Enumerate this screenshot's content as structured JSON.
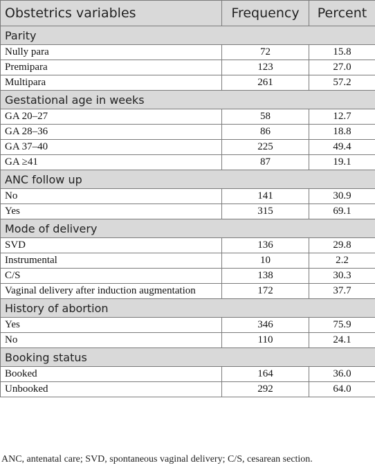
{
  "header": {
    "col1": "Obstetrics variables",
    "col2": "Frequency",
    "col3": "Percent"
  },
  "sections": [
    {
      "title": "Parity",
      "rows": [
        {
          "label": "Nully para",
          "frequency": "72",
          "percent": "15.8"
        },
        {
          "label": "Premipara",
          "frequency": "123",
          "percent": "27.0"
        },
        {
          "label": "Multipara",
          "frequency": "261",
          "percent": "57.2"
        }
      ]
    },
    {
      "title": "Gestational age in weeks",
      "rows": [
        {
          "label": "GA 20–27",
          "frequency": "58",
          "percent": "12.7"
        },
        {
          "label": "GA 28–36",
          "frequency": "86",
          "percent": "18.8"
        },
        {
          "label": "GA 37–40",
          "frequency": "225",
          "percent": "49.4"
        },
        {
          "label": "GA ≥41",
          "frequency": "87",
          "percent": "19.1"
        }
      ]
    },
    {
      "title": "ANC follow up",
      "rows": [
        {
          "label": "No",
          "frequency": "141",
          "percent": "30.9"
        },
        {
          "label": "Yes",
          "frequency": "315",
          "percent": "69.1"
        }
      ]
    },
    {
      "title": "Mode of delivery",
      "rows": [
        {
          "label": "SVD",
          "frequency": "136",
          "percent": "29.8"
        },
        {
          "label": "Instrumental",
          "frequency": "10",
          "percent": "2.2"
        },
        {
          "label": "C/S",
          "frequency": "138",
          "percent": "30.3"
        },
        {
          "label": "Vaginal delivery after induction augmentation",
          "frequency": "172",
          "percent": "37.7"
        }
      ]
    },
    {
      "title": "History of abortion",
      "rows": [
        {
          "label": "Yes",
          "frequency": "346",
          "percent": "75.9"
        },
        {
          "label": "No",
          "frequency": "110",
          "percent": "24.1"
        }
      ]
    },
    {
      "title": "Booking status",
      "rows": [
        {
          "label": "Booked",
          "frequency": "164",
          "percent": "36.0"
        },
        {
          "label": "Unbooked",
          "frequency": "292",
          "percent": "64.0"
        }
      ]
    }
  ],
  "footnote": "ANC, antenatal care; SVD, spontaneous vaginal delivery; C/S, cesarean section."
}
